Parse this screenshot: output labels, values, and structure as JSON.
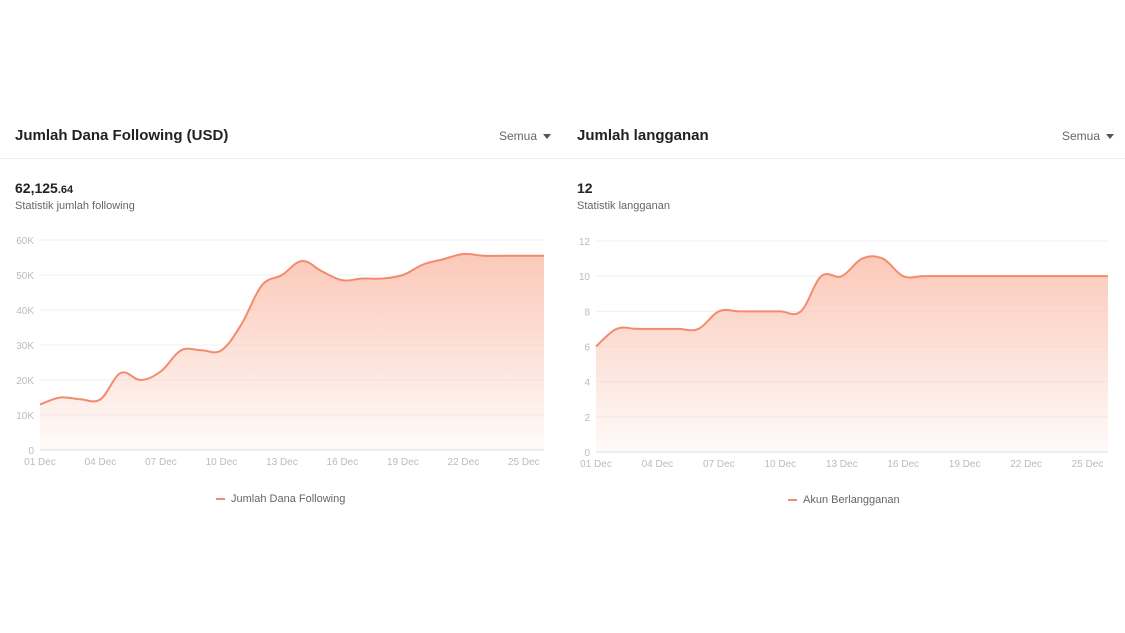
{
  "left": {
    "title": "Jumlah Dana Following (USD)",
    "filter_label": "Semua",
    "value_int": "62,125",
    "value_dec": ".64",
    "subtitle": "Statistik jumlah following",
    "legend": "Jumlah Dana Following"
  },
  "right": {
    "title": "Jumlah langganan",
    "filter_label": "Semua",
    "value_int": "12",
    "subtitle": "Statistik langganan",
    "legend": "Akun Berlangganan"
  },
  "colors": {
    "line": "#f38b6e",
    "fill_top": "#fbc6b5",
    "grid": "#f0f0f0",
    "axis": "#dddddd",
    "tick": "#bbbbbb"
  },
  "chart_data": [
    {
      "type": "area",
      "x": [
        "01 Dec",
        "02 Dec",
        "03 Dec",
        "04 Dec",
        "05 Dec",
        "06 Dec",
        "07 Dec",
        "08 Dec",
        "09 Dec",
        "10 Dec",
        "11 Dec",
        "12 Dec",
        "13 Dec",
        "14 Dec",
        "15 Dec",
        "16 Dec",
        "17 Dec",
        "18 Dec",
        "19 Dec",
        "20 Dec",
        "21 Dec",
        "22 Dec",
        "23 Dec",
        "24 Dec",
        "25 Dec",
        "26 Dec"
      ],
      "x_tick_labels": [
        "01 Dec",
        "04 Dec",
        "07 Dec",
        "10 Dec",
        "13 Dec",
        "16 Dec",
        "19 Dec",
        "22 Dec",
        "25 Dec"
      ],
      "series": [
        {
          "name": "Jumlah Dana Following",
          "values": [
            13000,
            15000,
            14500,
            14500,
            22000,
            20000,
            22500,
            28500,
            28500,
            28500,
            36000,
            47000,
            50000,
            54000,
            51000,
            48500,
            49000,
            49000,
            50000,
            53000,
            54500,
            56000,
            55500,
            55500,
            55500,
            55500
          ]
        }
      ],
      "y_tick_labels": [
        "0",
        "10K",
        "20K",
        "30K",
        "40K",
        "50K",
        "60K"
      ],
      "ylim": [
        0,
        60000
      ],
      "grid": true,
      "legend_position": "bottom"
    },
    {
      "type": "area",
      "x": [
        "01 Dec",
        "02 Dec",
        "03 Dec",
        "04 Dec",
        "05 Dec",
        "06 Dec",
        "07 Dec",
        "08 Dec",
        "09 Dec",
        "10 Dec",
        "11 Dec",
        "12 Dec",
        "13 Dec",
        "14 Dec",
        "15 Dec",
        "16 Dec",
        "17 Dec",
        "18 Dec",
        "19 Dec",
        "20 Dec",
        "21 Dec",
        "22 Dec",
        "23 Dec",
        "24 Dec",
        "25 Dec",
        "26 Dec"
      ],
      "x_tick_labels": [
        "01 Dec",
        "04 Dec",
        "07 Dec",
        "10 Dec",
        "13 Dec",
        "16 Dec",
        "19 Dec",
        "22 Dec",
        "25 Dec"
      ],
      "series": [
        {
          "name": "Akun Berlangganan",
          "values": [
            6,
            7,
            7,
            7,
            7,
            7,
            8,
            8,
            8,
            8,
            8,
            10,
            10,
            11,
            11,
            10,
            10,
            10,
            10,
            10,
            10,
            10,
            10,
            10,
            10,
            10
          ]
        }
      ],
      "y_tick_labels": [
        "0",
        "2",
        "4",
        "6",
        "8",
        "10",
        "12"
      ],
      "ylim": [
        0,
        12
      ],
      "grid": true,
      "legend_position": "bottom"
    }
  ]
}
